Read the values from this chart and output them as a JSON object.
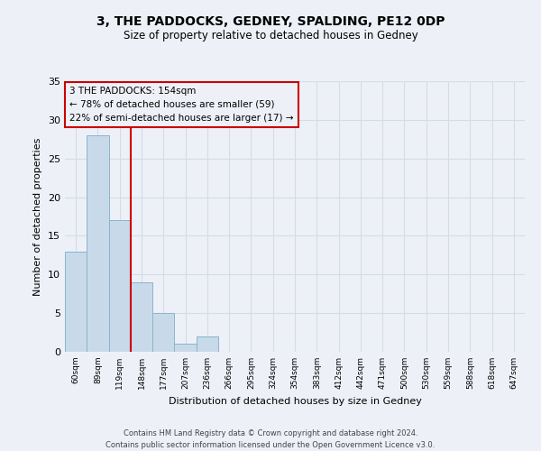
{
  "title1": "3, THE PADDOCKS, GEDNEY, SPALDING, PE12 0DP",
  "title2": "Size of property relative to detached houses in Gedney",
  "xlabel": "Distribution of detached houses by size in Gedney",
  "ylabel": "Number of detached properties",
  "categories": [
    "60sqm",
    "89sqm",
    "119sqm",
    "148sqm",
    "177sqm",
    "207sqm",
    "236sqm",
    "266sqm",
    "295sqm",
    "324sqm",
    "354sqm",
    "383sqm",
    "412sqm",
    "442sqm",
    "471sqm",
    "500sqm",
    "530sqm",
    "559sqm",
    "588sqm",
    "618sqm",
    "647sqm"
  ],
  "values": [
    13,
    28,
    17,
    9,
    5,
    1,
    2,
    0,
    0,
    0,
    0,
    0,
    0,
    0,
    0,
    0,
    0,
    0,
    0,
    0,
    0
  ],
  "bar_color": "#c8daea",
  "bar_edge_color": "#8ab4cc",
  "grid_color": "#d4dce8",
  "background_color": "#edf1f7",
  "vline_color": "#cc0000",
  "vline_x": 2.5,
  "annotation_line1": "3 THE PADDOCKS: 154sqm",
  "annotation_line2": "← 78% of detached houses are smaller (59)",
  "annotation_line3": "22% of semi-detached houses are larger (17) →",
  "annotation_box_color": "#cc0000",
  "ylim": [
    0,
    35
  ],
  "yticks": [
    0,
    5,
    10,
    15,
    20,
    25,
    30,
    35
  ],
  "footnote": "Contains HM Land Registry data © Crown copyright and database right 2024.\nContains public sector information licensed under the Open Government Licence v3.0."
}
